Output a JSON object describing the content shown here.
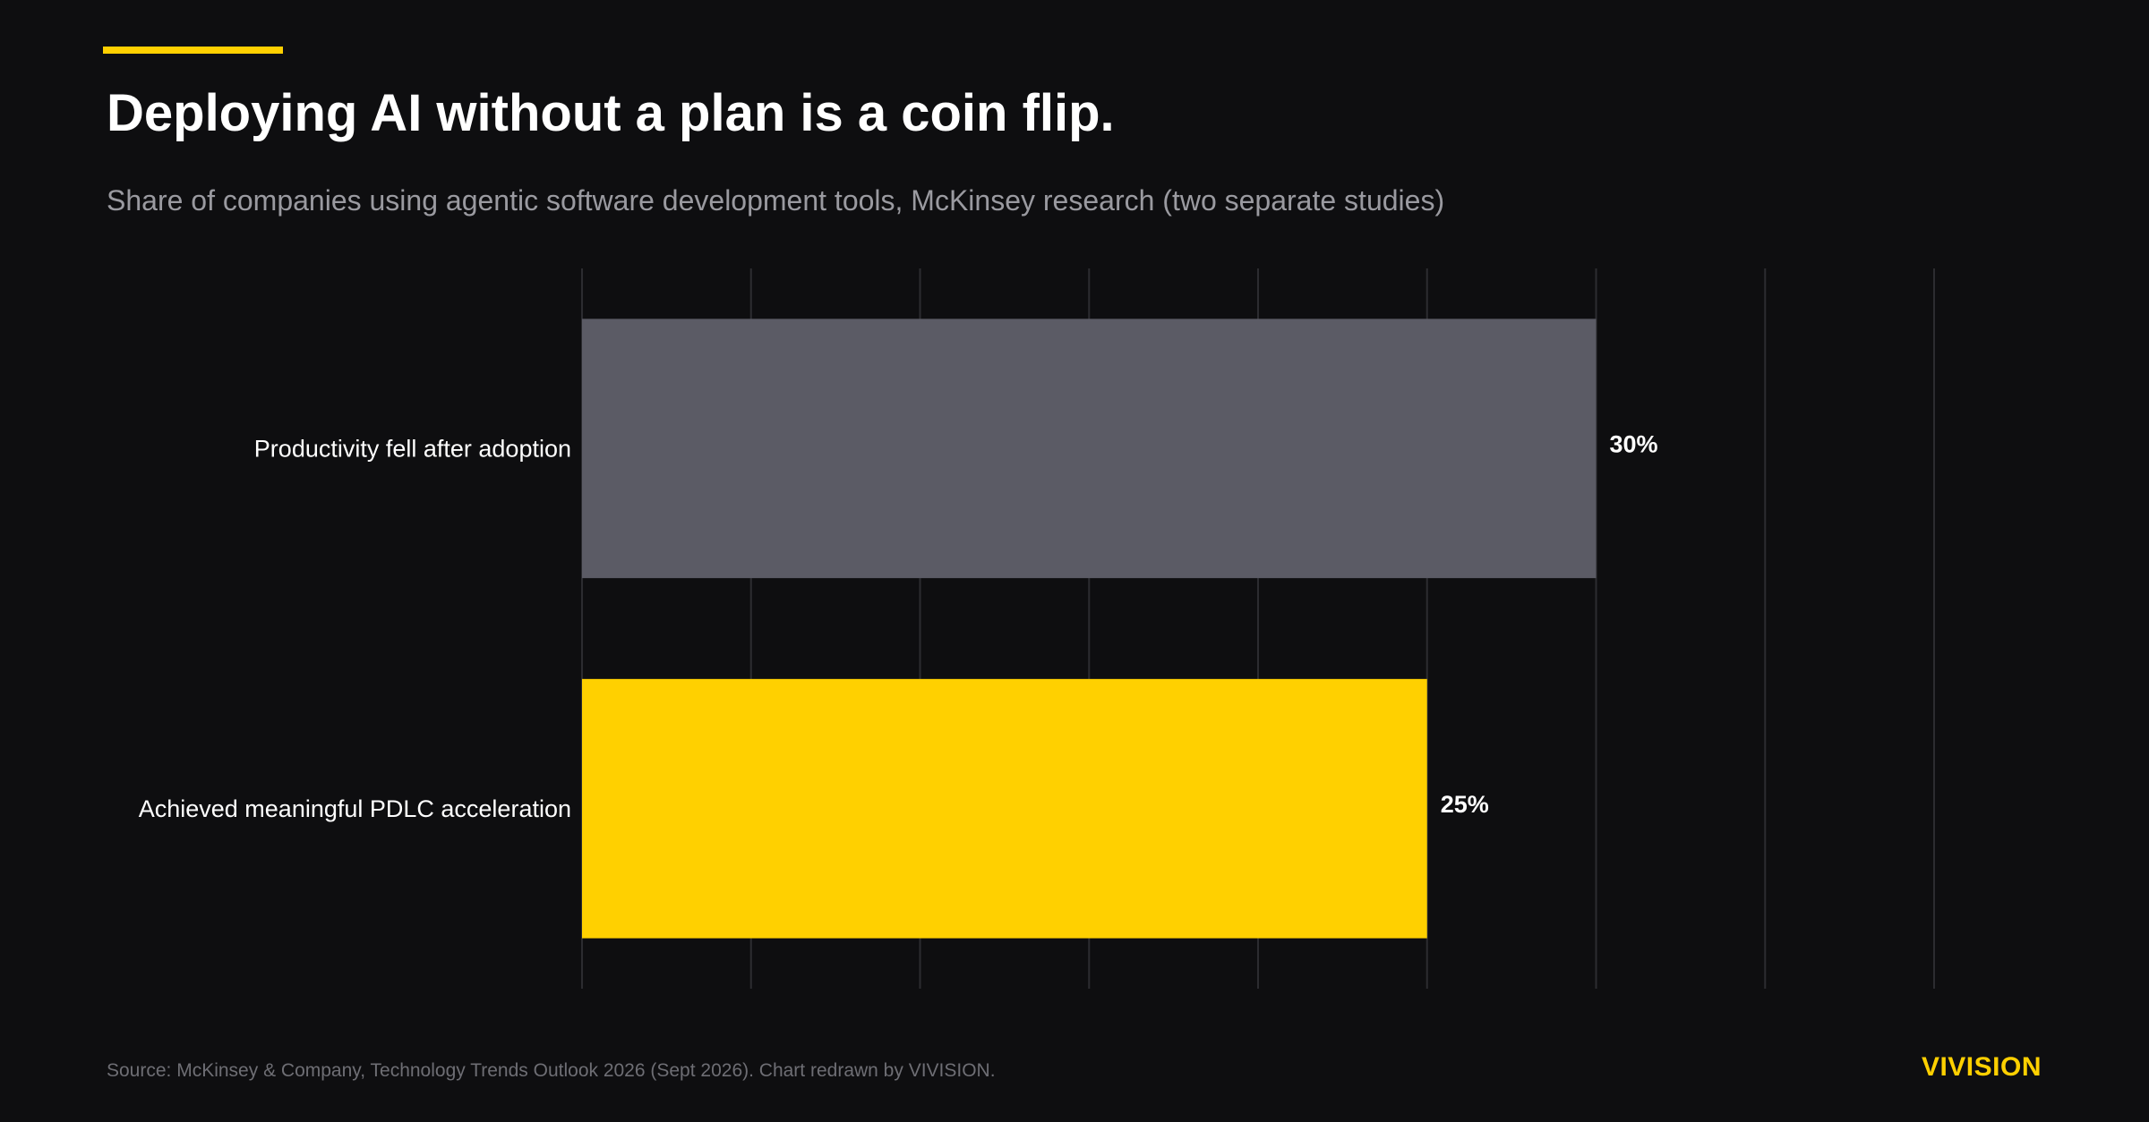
{
  "header": {
    "title": "Deploying AI without a plan is a coin flip.",
    "subtitle": "Share of companies using agentic software development tools, McKinsey research (two separate studies)"
  },
  "footer": {
    "source": "Source: McKinsey & Company, Technology Trends Outlook 2026 (Sept 2026). Chart redrawn by VIVISION.",
    "brand": "VIVISION"
  },
  "colors": {
    "background": "#0e0e10",
    "accent": "#ffd000",
    "bar_gray": "#5b5b65",
    "gridline": "#2c2c30"
  },
  "chart_data": {
    "type": "bar",
    "orientation": "horizontal",
    "title": "Deploying AI without a plan is a coin flip.",
    "subtitle": "Share of companies using agentic software development tools, McKinsey research (two separate studies)",
    "categories": [
      "Productivity fell after adoption",
      "Achieved meaningful PDLC acceleration"
    ],
    "values": [
      30,
      25
    ],
    "value_labels": [
      "30%",
      "25%"
    ],
    "bar_colors": [
      "#5b5b65",
      "#ffd000"
    ],
    "xlim": [
      0,
      40
    ],
    "grid": true,
    "legend": "none"
  }
}
